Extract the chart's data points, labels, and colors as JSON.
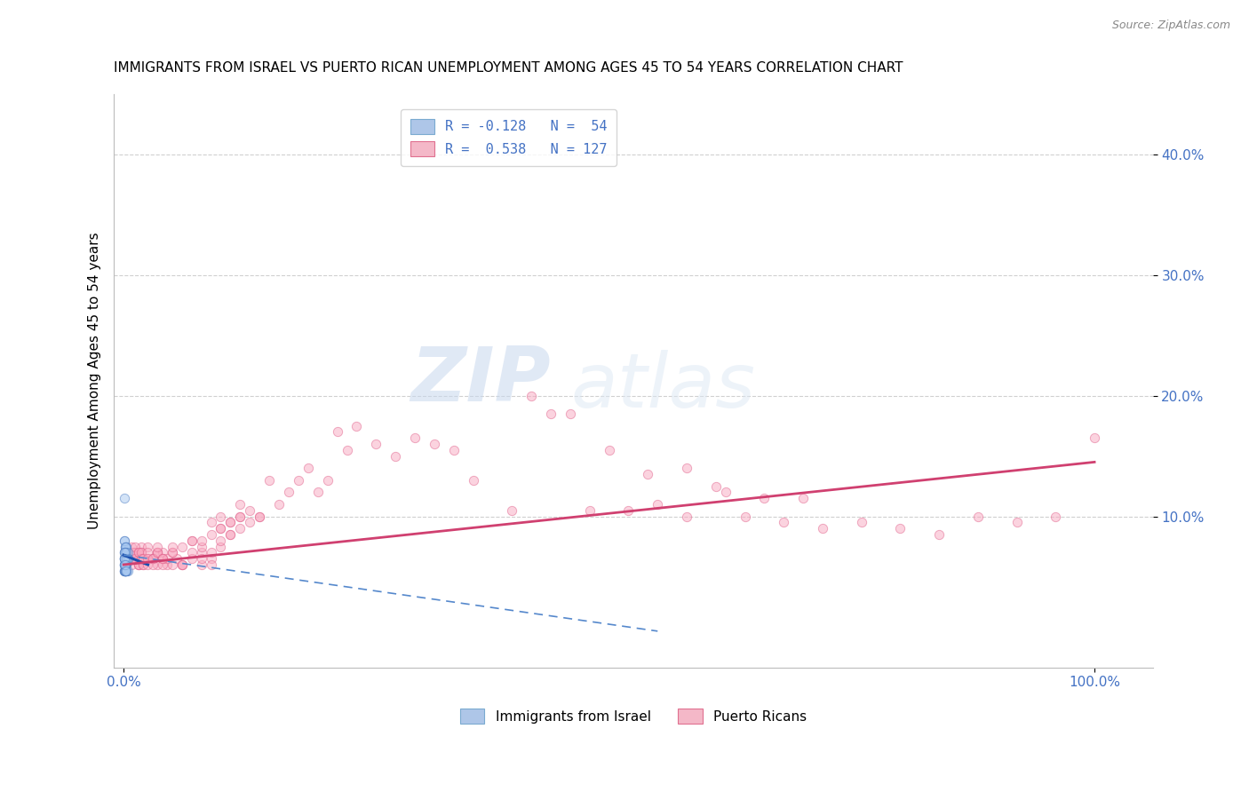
{
  "title": "IMMIGRANTS FROM ISRAEL VS PUERTO RICAN UNEMPLOYMENT AMONG AGES 45 TO 54 YEARS CORRELATION CHART",
  "source": "Source: ZipAtlas.com",
  "ylabel": "Unemployment Among Ages 45 to 54 years",
  "xlim": [
    -0.01,
    1.06
  ],
  "ylim": [
    -0.025,
    0.45
  ],
  "xtick_positions": [
    0.0,
    1.0
  ],
  "xtick_labels": [
    "0.0%",
    "100.0%"
  ],
  "ytick_positions": [
    0.1,
    0.2,
    0.3,
    0.4
  ],
  "ytick_labels": [
    "10.0%",
    "20.0%",
    "30.0%",
    "40.0%"
  ],
  "legend_top": [
    {
      "label": "R = -0.128   N =  54",
      "facecolor": "#aec6e8",
      "edgecolor": "#7aaad0"
    },
    {
      "label": "R =  0.538   N = 127",
      "facecolor": "#f4b8c8",
      "edgecolor": "#e07090"
    }
  ],
  "legend_bottom": [
    {
      "label": "Immigrants from Israel",
      "facecolor": "#aec6e8",
      "edgecolor": "#7aaad0"
    },
    {
      "label": "Puerto Ricans",
      "facecolor": "#f4b8c8",
      "edgecolor": "#e07090"
    }
  ],
  "watermark_zip": "ZIP",
  "watermark_atlas": "atlas",
  "blue_scatter_x": [
    0.001,
    0.002,
    0.001,
    0.003,
    0.001,
    0.002,
    0.001,
    0.003,
    0.002,
    0.001,
    0.004,
    0.001,
    0.002,
    0.001,
    0.003,
    0.002,
    0.001,
    0.002,
    0.003,
    0.001,
    0.002,
    0.001,
    0.004,
    0.002,
    0.001,
    0.003,
    0.002,
    0.001,
    0.002,
    0.003,
    0.001,
    0.002,
    0.001,
    0.003,
    0.002,
    0.004,
    0.001,
    0.002,
    0.003,
    0.001,
    0.002,
    0.001,
    0.003,
    0.002,
    0.004,
    0.001,
    0.002,
    0.003,
    0.001,
    0.002,
    0.001,
    0.002,
    0.001,
    0.003
  ],
  "blue_scatter_y": [
    0.115,
    0.075,
    0.065,
    0.06,
    0.055,
    0.07,
    0.08,
    0.075,
    0.06,
    0.055,
    0.065,
    0.07,
    0.075,
    0.08,
    0.065,
    0.06,
    0.055,
    0.07,
    0.075,
    0.065,
    0.06,
    0.055,
    0.07,
    0.075,
    0.065,
    0.06,
    0.055,
    0.07,
    0.06,
    0.055,
    0.065,
    0.055,
    0.06,
    0.065,
    0.07,
    0.055,
    0.06,
    0.065,
    0.055,
    0.06,
    0.055,
    0.065,
    0.07,
    0.055,
    0.065,
    0.06,
    0.055,
    0.065,
    0.06,
    0.055,
    0.065,
    0.06,
    0.07,
    0.055
  ],
  "pink_scatter_x": [
    0.005,
    0.008,
    0.01,
    0.012,
    0.015,
    0.008,
    0.01,
    0.012,
    0.015,
    0.018,
    0.01,
    0.012,
    0.015,
    0.018,
    0.02,
    0.012,
    0.015,
    0.018,
    0.02,
    0.025,
    0.015,
    0.018,
    0.02,
    0.025,
    0.03,
    0.018,
    0.02,
    0.025,
    0.03,
    0.035,
    0.02,
    0.025,
    0.03,
    0.035,
    0.04,
    0.025,
    0.03,
    0.035,
    0.04,
    0.045,
    0.03,
    0.035,
    0.04,
    0.05,
    0.055,
    0.035,
    0.04,
    0.045,
    0.05,
    0.06,
    0.04,
    0.05,
    0.06,
    0.07,
    0.08,
    0.05,
    0.06,
    0.07,
    0.08,
    0.09,
    0.06,
    0.07,
    0.08,
    0.09,
    0.1,
    0.07,
    0.08,
    0.09,
    0.1,
    0.11,
    0.08,
    0.09,
    0.1,
    0.11,
    0.12,
    0.09,
    0.1,
    0.11,
    0.12,
    0.13,
    0.1,
    0.11,
    0.12,
    0.13,
    0.14,
    0.12,
    0.14,
    0.16,
    0.18,
    0.2,
    0.15,
    0.17,
    0.19,
    0.21,
    0.23,
    0.22,
    0.24,
    0.26,
    0.28,
    0.3,
    0.32,
    0.34,
    0.36,
    0.4,
    0.44,
    0.48,
    0.52,
    0.55,
    0.58,
    0.61,
    0.64,
    0.68,
    0.72,
    0.76,
    0.8,
    0.84,
    0.88,
    0.92,
    0.96,
    1.0,
    0.42,
    0.46,
    0.5,
    0.54,
    0.58,
    0.62,
    0.66,
    0.7
  ],
  "pink_scatter_y": [
    0.065,
    0.06,
    0.07,
    0.065,
    0.06,
    0.075,
    0.065,
    0.07,
    0.06,
    0.075,
    0.07,
    0.065,
    0.06,
    0.07,
    0.065,
    0.075,
    0.07,
    0.065,
    0.06,
    0.065,
    0.07,
    0.065,
    0.06,
    0.075,
    0.065,
    0.07,
    0.065,
    0.06,
    0.065,
    0.07,
    0.065,
    0.07,
    0.065,
    0.06,
    0.07,
    0.065,
    0.06,
    0.07,
    0.065,
    0.06,
    0.065,
    0.07,
    0.065,
    0.06,
    0.065,
    0.075,
    0.06,
    0.065,
    0.07,
    0.06,
    0.065,
    0.07,
    0.06,
    0.065,
    0.07,
    0.075,
    0.06,
    0.07,
    0.06,
    0.065,
    0.075,
    0.08,
    0.065,
    0.06,
    0.075,
    0.08,
    0.075,
    0.07,
    0.08,
    0.085,
    0.08,
    0.085,
    0.09,
    0.085,
    0.09,
    0.095,
    0.09,
    0.095,
    0.1,
    0.095,
    0.1,
    0.095,
    0.1,
    0.105,
    0.1,
    0.11,
    0.1,
    0.11,
    0.13,
    0.12,
    0.13,
    0.12,
    0.14,
    0.13,
    0.155,
    0.17,
    0.175,
    0.16,
    0.15,
    0.165,
    0.16,
    0.155,
    0.13,
    0.105,
    0.185,
    0.105,
    0.105,
    0.11,
    0.1,
    0.125,
    0.1,
    0.095,
    0.09,
    0.095,
    0.09,
    0.085,
    0.1,
    0.095,
    0.1,
    0.165,
    0.2,
    0.185,
    0.155,
    0.135,
    0.14,
    0.12,
    0.115,
    0.115
  ],
  "blue_solid_line_x": [
    0.0,
    0.025
  ],
  "blue_solid_line_y": [
    0.068,
    0.06
  ],
  "blue_dashed_line_x": [
    0.0,
    0.55
  ],
  "blue_dashed_line_y": [
    0.068,
    0.005
  ],
  "pink_line_x": [
    0.0,
    1.0
  ],
  "pink_line_y": [
    0.06,
    0.145
  ],
  "background_color": "#ffffff",
  "scatter_alpha": 0.5,
  "blue_scatter_size": 55,
  "pink_scatter_size": 55,
  "grid_color": "#d0d0d0",
  "title_fontsize": 11,
  "axis_label_fontsize": 11,
  "tick_fontsize": 11,
  "legend_fontsize": 11,
  "tick_color": "#4472c4",
  "ylabel_color": "#000000"
}
